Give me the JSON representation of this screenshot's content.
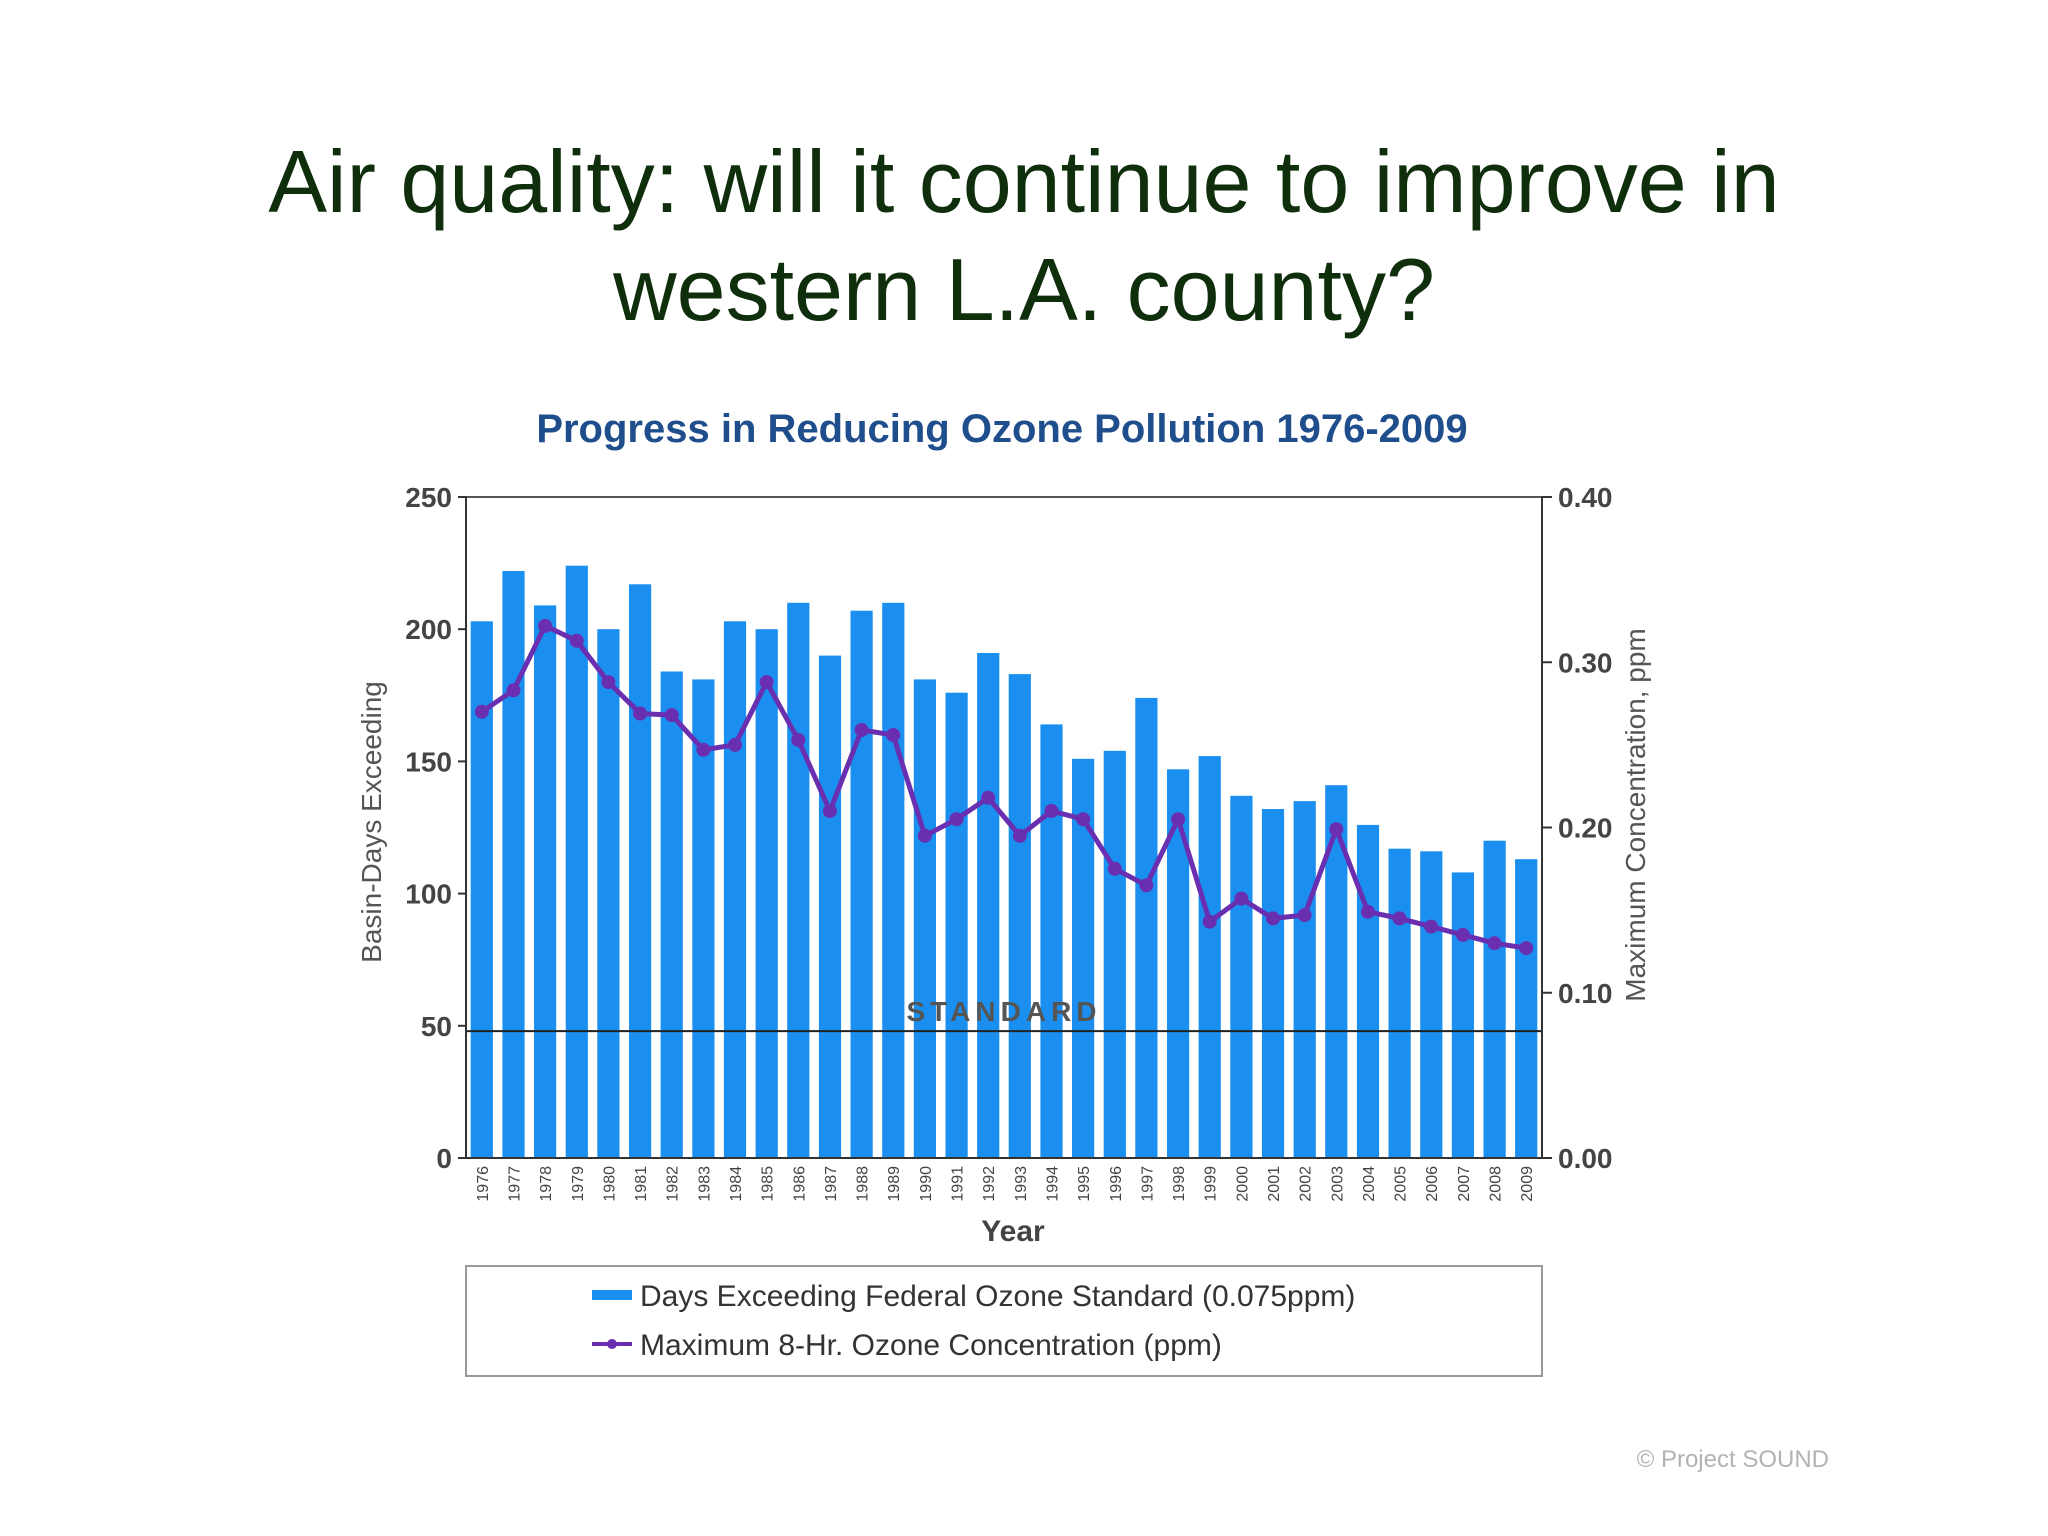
{
  "slide": {
    "title_line1": "Air quality: will it continue to improve in",
    "title_line2": "western L.A. county?",
    "credit": "© Project  SOUND"
  },
  "colors": {
    "title": "#0f2e0b",
    "chart_title": "#1f4e8c",
    "bars": "#1a8ff0",
    "line": "#6a2fb0",
    "axis_text": "#444444"
  },
  "chart_data": {
    "type": "bar",
    "title": "Progress in Reducing Ozone Pollution 1976-2009",
    "xlabel": "Year",
    "ylabel": "Basin-Days Exceeding",
    "ylabel_right": "Maximum Concentration, ppm",
    "ylim": [
      0,
      250
    ],
    "ylim_right": [
      0,
      0.4
    ],
    "yticks": [
      "0",
      "50",
      "100",
      "150",
      "200",
      "250"
    ],
    "yticks_right": [
      "0.00",
      "0.10",
      "0.20",
      "0.30",
      "0.40"
    ],
    "categories": [
      "1976",
      "1977",
      "1978",
      "1979",
      "1980",
      "1981",
      "1982",
      "1983",
      "1984",
      "1985",
      "1986",
      "1987",
      "1988",
      "1989",
      "1990",
      "1991",
      "1992",
      "1993",
      "1994",
      "1995",
      "1996",
      "1997",
      "1998",
      "1999",
      "2000",
      "2001",
      "2002",
      "2003",
      "2004",
      "2005",
      "2006",
      "2007",
      "2008",
      "2009"
    ],
    "series": [
      {
        "name": "Days Exceeding Federal Ozone Standard (0.075ppm)",
        "type": "bar",
        "axis": "left",
        "values": [
          203,
          222,
          209,
          224,
          200,
          217,
          184,
          181,
          203,
          200,
          210,
          190,
          207,
          210,
          181,
          176,
          191,
          183,
          164,
          151,
          154,
          174,
          147,
          152,
          137,
          132,
          135,
          141,
          126,
          117,
          116,
          108,
          120,
          113
        ]
      },
      {
        "name": "Maximum 8-Hr. Ozone Concentration (ppm)",
        "type": "line",
        "axis": "right",
        "values": [
          0.27,
          0.283,
          0.322,
          0.313,
          0.288,
          0.269,
          0.268,
          0.247,
          0.25,
          0.288,
          0.253,
          0.21,
          0.259,
          0.256,
          0.195,
          0.205,
          0.218,
          0.195,
          0.21,
          0.205,
          0.175,
          0.165,
          0.205,
          0.143,
          0.157,
          0.145,
          0.147,
          0.199,
          0.149,
          0.145,
          0.14,
          0.135,
          0.13,
          0.127
        ]
      }
    ],
    "reference_line": {
      "label": "STANDARD",
      "value": 48
    },
    "legend_position": "bottom"
  }
}
